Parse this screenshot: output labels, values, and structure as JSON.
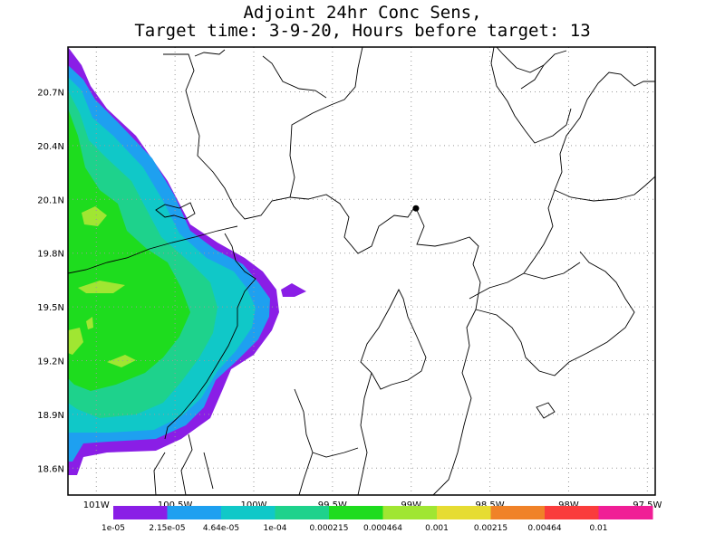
{
  "title": {
    "line1": "Adjoint 24hr Conc Sens,",
    "line2": "Target time: 3-9-20, Hours before target: 13"
  },
  "axes": {
    "lat_labels": [
      "20.7N",
      "20.4N",
      "20.1N",
      "19.8N",
      "19.5N",
      "19.2N",
      "18.9N",
      "18.6N"
    ],
    "lon_labels": [
      "101W",
      "100.5W",
      "100W",
      "99.5W",
      "99W",
      "98.5W",
      "98W",
      "97.5W"
    ],
    "lat_values": [
      20.7,
      20.4,
      20.1,
      19.8,
      19.5,
      19.2,
      18.9,
      18.6
    ],
    "lon_values": [
      -101.0,
      -100.5,
      -100.0,
      -99.5,
      -99.0,
      -98.5,
      -98.0,
      -97.5
    ],
    "lat_range": [
      18.45,
      20.95
    ],
    "lon_range": [
      -101.18,
      -97.45
    ],
    "grid": "dotted"
  },
  "legend": {
    "placement": "bottom",
    "colors": [
      "#8a1ee6",
      "#1ea0f0",
      "#10c8c8",
      "#1ed28c",
      "#1edc1e",
      "#a0e632",
      "#e6dc32",
      "#f08228",
      "#fa3c3c",
      "#f01e96"
    ],
    "labels": [
      "1e-05",
      "2.15e-05",
      "4.64e-05",
      "1e-04",
      "0.000215",
      "0.000464",
      "0.001",
      "0.00215",
      "0.00464",
      "0.01"
    ]
  },
  "marker": {
    "lon": -98.97,
    "lat": 20.05,
    "shape": "circle",
    "color": "#000000"
  }
}
